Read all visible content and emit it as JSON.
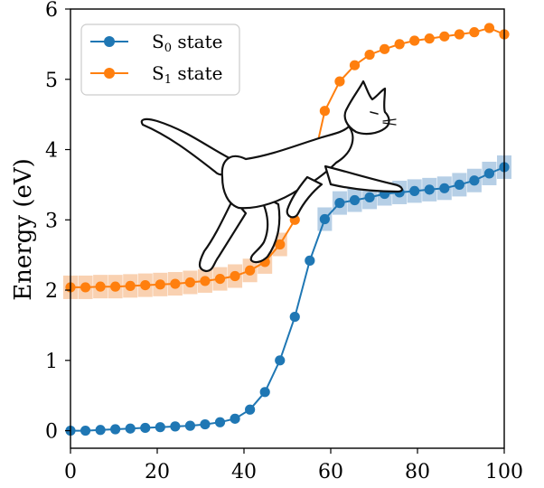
{
  "chart_data": {
    "type": "line",
    "title": "",
    "xlabel": "",
    "ylabel": "Energy (eV)",
    "xlim": [
      0,
      100
    ],
    "ylim": [
      -0.25,
      6
    ],
    "xticks": [
      0,
      20,
      40,
      60,
      80,
      100
    ],
    "yticks": [
      0,
      1,
      2,
      3,
      4,
      5,
      6
    ],
    "grid": false,
    "legend_position": "top-left",
    "x": [
      0,
      3.45,
      6.9,
      10.34,
      13.79,
      17.24,
      20.69,
      24.14,
      27.59,
      31.03,
      34.48,
      37.93,
      41.38,
      44.83,
      48.28,
      51.72,
      55.17,
      58.62,
      62.07,
      65.52,
      68.97,
      72.41,
      75.86,
      79.31,
      82.76,
      86.21,
      89.66,
      93.1,
      96.55,
      100
    ],
    "series": [
      {
        "name_main": "S",
        "name_sub": "0",
        "name_rest": " state",
        "color": "#1f77b4",
        "values": [
          0.0,
          0.0,
          0.01,
          0.02,
          0.03,
          0.04,
          0.05,
          0.06,
          0.07,
          0.09,
          0.12,
          0.17,
          0.3,
          0.55,
          1.0,
          1.62,
          2.42,
          3.01,
          3.24,
          3.28,
          3.32,
          3.37,
          3.39,
          3.41,
          3.43,
          3.45,
          3.5,
          3.56,
          3.66,
          3.75
        ],
        "uncertainty_band": true
      },
      {
        "name_main": "S",
        "name_sub": "1",
        "name_rest": " state",
        "color": "#ff7f0e",
        "values": [
          2.04,
          2.04,
          2.05,
          2.05,
          2.06,
          2.07,
          2.08,
          2.09,
          2.11,
          2.13,
          2.16,
          2.2,
          2.28,
          2.4,
          2.65,
          3.0,
          3.6,
          4.55,
          4.97,
          5.2,
          5.35,
          5.43,
          5.5,
          5.55,
          5.58,
          5.61,
          5.64,
          5.67,
          5.73,
          5.64
        ],
        "uncertainty_band": true
      }
    ]
  },
  "colors": {
    "s0": "#1f77b4",
    "s1": "#ff7f0e",
    "s0_band": "#a9c7e2",
    "s1_band": "#f8c9a3"
  },
  "overlay": {
    "icon": "cat-icon"
  }
}
